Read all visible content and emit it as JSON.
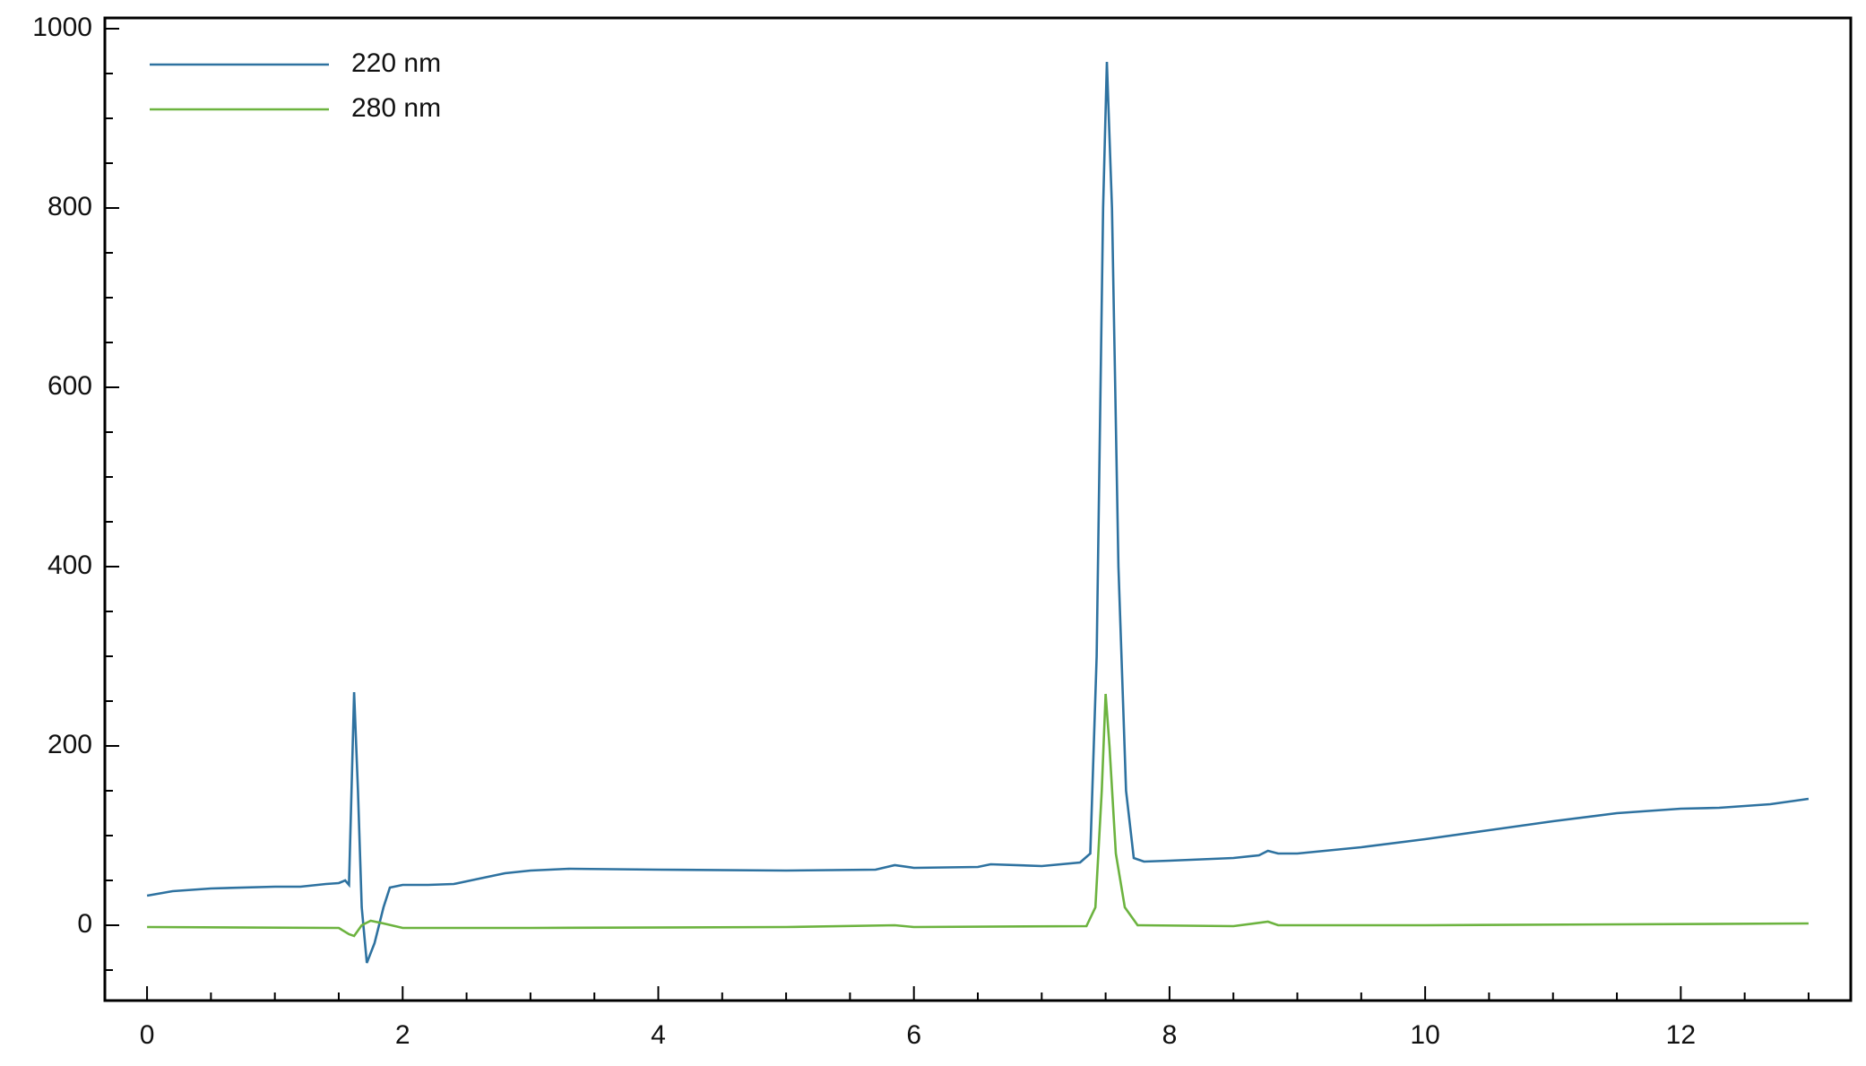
{
  "chart_data": {
    "type": "line",
    "xlim": [
      -0.33,
      13.33
    ],
    "ylim": [
      -84,
      1012
    ],
    "xticks": [
      0,
      2,
      4,
      6,
      8,
      10,
      12
    ],
    "yticks": [
      0,
      200,
      400,
      600,
      800,
      1000
    ],
    "x_minor_ticks": [
      -0.5,
      0.5,
      1,
      1.5,
      2.5,
      3,
      3.5,
      4.5,
      5,
      5.5,
      6.5,
      7,
      7.5,
      8.5,
      9,
      9.5,
      10.5,
      11,
      11.5,
      12.5,
      13
    ],
    "y_minor_ticks": [
      -50,
      50,
      100,
      150,
      250,
      300,
      350,
      450,
      500,
      550,
      650,
      700,
      750,
      850,
      900,
      950
    ],
    "grid": false,
    "legend": "upper left",
    "series": [
      {
        "name": "220 nm",
        "color": "#2e72a0",
        "x": [
          0,
          0.2,
          0.5,
          1.0,
          1.2,
          1.4,
          1.5,
          1.55,
          1.58,
          1.6,
          1.62,
          1.65,
          1.68,
          1.72,
          1.78,
          1.85,
          1.9,
          2.0,
          2.2,
          2.4,
          2.6,
          2.8,
          3.0,
          3.3,
          4.0,
          5.0,
          5.7,
          5.85,
          6.0,
          6.5,
          6.6,
          7.0,
          7.3,
          7.38,
          7.43,
          7.48,
          7.51,
          7.55,
          7.6,
          7.66,
          7.72,
          7.8,
          8.0,
          8.5,
          8.7,
          8.77,
          8.85,
          9.0,
          9.5,
          10,
          10.5,
          11,
          11.5,
          12,
          12.3,
          12.7,
          13
        ],
        "values": [
          33,
          38,
          41,
          43,
          43,
          46,
          47,
          50,
          45,
          150,
          260,
          150,
          20,
          -42,
          -20,
          20,
          42,
          45,
          45,
          46,
          52,
          58,
          61,
          63,
          62,
          61,
          62,
          67,
          64,
          65,
          68,
          66,
          70,
          80,
          300,
          800,
          963,
          800,
          400,
          150,
          75,
          71,
          72,
          75,
          78,
          83,
          80,
          80,
          87,
          96,
          106,
          116,
          125,
          130,
          131,
          135,
          141
        ]
      },
      {
        "name": "280 nm",
        "color": "#6cb33f",
        "x": [
          0,
          1.5,
          1.58,
          1.62,
          1.68,
          1.75,
          1.85,
          2.0,
          3,
          5,
          5.85,
          6,
          7.35,
          7.42,
          7.47,
          7.5,
          7.53,
          7.58,
          7.65,
          7.75,
          8.5,
          8.77,
          8.85,
          9.35,
          10,
          13
        ],
        "values": [
          -2,
          -3,
          -10,
          -12,
          0,
          5,
          2,
          -3,
          -3,
          -2,
          0,
          -2,
          -1,
          20,
          150,
          258,
          200,
          80,
          20,
          0,
          -1,
          4,
          0,
          0,
          0,
          2
        ]
      }
    ]
  }
}
